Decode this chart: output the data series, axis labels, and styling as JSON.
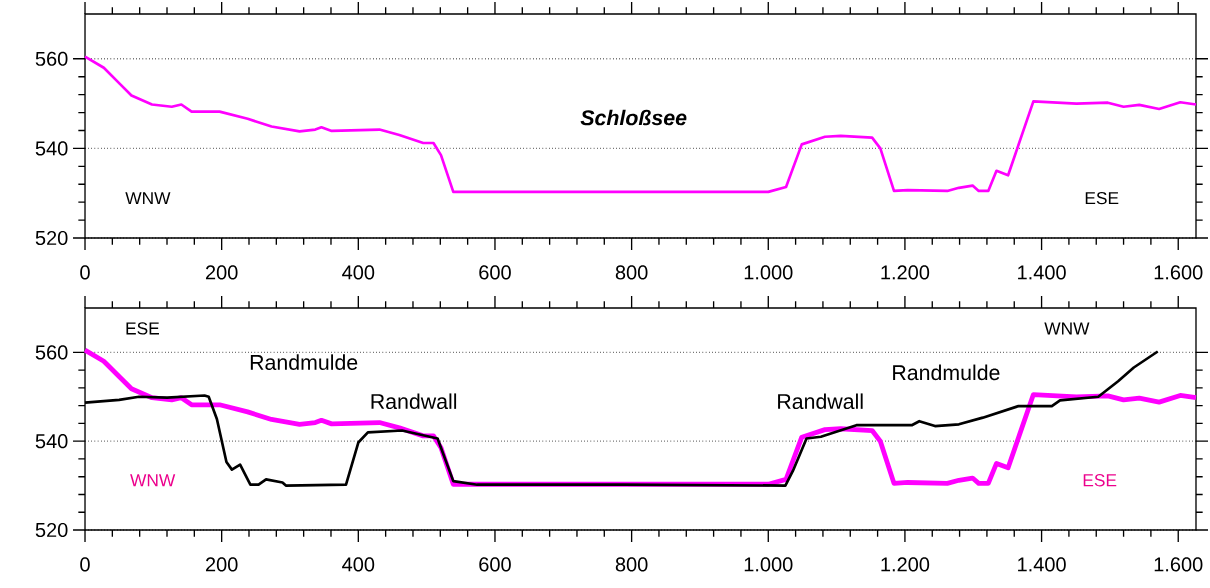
{
  "chart_data": [
    {
      "type": "line",
      "title": "Schloßsee",
      "xlim": [
        0,
        1626
      ],
      "ylim": [
        520,
        570
      ],
      "xticks": [
        0,
        200,
        400,
        600,
        800,
        {
          "value": 1000,
          "label": "1.000"
        },
        {
          "value": 1200,
          "label": "1.200"
        },
        {
          "value": 1400,
          "label": "1.400"
        },
        {
          "value": 1600,
          "label": "1.600"
        }
      ],
      "yticks": [
        520,
        540,
        560
      ],
      "grid": "y",
      "annotations": [
        "WNW",
        "ESE"
      ],
      "series": [
        {
          "color": "#ff00ff",
          "x": [
            0,
            27.5,
            51,
            68,
            98,
            127,
            141,
            156,
            197,
            238,
            273,
            314,
            337,
            346,
            361,
            431,
            460,
            495,
            510,
            521,
            539,
            762,
            877,
            1000,
            1026,
            1049,
            1083,
            1106,
            1152,
            1164,
            1184,
            1204,
            1262,
            1279,
            1299,
            1308,
            1322,
            1334,
            1351,
            1388,
            1451,
            1497,
            1520,
            1543,
            1572,
            1603,
            1626
          ],
          "values": [
            560.5,
            558,
            554.4,
            551.8,
            549.8,
            549.3,
            549.8,
            548.2,
            548.2,
            546.6,
            544.9,
            543.8,
            544.2,
            544.7,
            543.9,
            544.2,
            543,
            541.2,
            541.2,
            538.5,
            530.3,
            530.3,
            530.3,
            530.3,
            531.4,
            540.9,
            542.6,
            542.8,
            542.4,
            540,
            530.5,
            530.7,
            530.5,
            531.2,
            531.7,
            530.5,
            530.5,
            535,
            534,
            550.5,
            550,
            550.2,
            549.3,
            549.7,
            548.8,
            550.3,
            549.8
          ]
        }
      ]
    },
    {
      "type": "line",
      "xlim": [
        0,
        1626
      ],
      "ylim": [
        520,
        570
      ],
      "xticks": [
        0,
        200,
        400,
        600,
        800,
        {
          "value": 1000,
          "label": "1.000"
        },
        {
          "value": 1200,
          "label": "1.200"
        },
        {
          "value": 1400,
          "label": "1.400"
        },
        {
          "value": 1600,
          "label": "1.600"
        }
      ],
      "yticks": [
        520,
        540,
        560
      ],
      "grid": "y",
      "annotations": [
        "ESE",
        "WNW",
        "WNW",
        "ESE",
        "Randmulde",
        "Randwall",
        "Randwall",
        "Randmulde"
      ],
      "series": [
        {
          "color": "#ff00ff",
          "x": [
            0,
            27.5,
            51,
            68,
            98,
            127,
            141,
            156,
            197,
            238,
            273,
            314,
            337,
            346,
            361,
            431,
            460,
            495,
            510,
            521,
            539,
            762,
            877,
            1000,
            1026,
            1049,
            1083,
            1106,
            1152,
            1164,
            1184,
            1204,
            1262,
            1279,
            1299,
            1308,
            1322,
            1334,
            1351,
            1388,
            1451,
            1497,
            1520,
            1543,
            1572,
            1603,
            1626
          ],
          "values": [
            560.5,
            558,
            554.4,
            551.8,
            549.8,
            549.3,
            549.8,
            548.2,
            548.2,
            546.6,
            544.9,
            543.8,
            544.2,
            544.7,
            543.9,
            544.2,
            543,
            541.2,
            541.2,
            538.5,
            530.3,
            530.3,
            530.3,
            530.3,
            531.4,
            540.9,
            542.6,
            542.8,
            542.4,
            540,
            530.5,
            530.7,
            530.5,
            531.2,
            531.7,
            530.5,
            530.5,
            535,
            534,
            550.5,
            550,
            550.2,
            549.3,
            549.7,
            548.8,
            550.3,
            549.8
          ]
        },
        {
          "color": "#000000",
          "x": [
            0,
            50,
            79,
            120,
            175,
            181,
            193,
            207,
            215,
            227,
            242,
            254,
            265,
            289,
            294,
            382,
            400,
            414,
            464,
            516,
            539,
            574,
            787,
            1025,
            1036,
            1056,
            1077,
            1129,
            1210,
            1221,
            1244,
            1279,
            1314,
            1366,
            1415,
            1427,
            1483,
            1512,
            1535,
            1570
          ],
          "values": [
            548.7,
            549.3,
            550,
            549.8,
            550.3,
            550,
            545,
            535.3,
            533.6,
            534.7,
            530.2,
            530.2,
            531.4,
            530.7,
            530,
            530.2,
            539.7,
            542,
            542.4,
            540.6,
            531,
            530.2,
            530.2,
            530,
            533.3,
            540.6,
            541,
            543.6,
            543.6,
            544.5,
            543.4,
            543.8,
            545.3,
            547.9,
            547.9,
            549.2,
            550,
            553.5,
            556.6,
            560.2
          ]
        }
      ]
    }
  ]
}
